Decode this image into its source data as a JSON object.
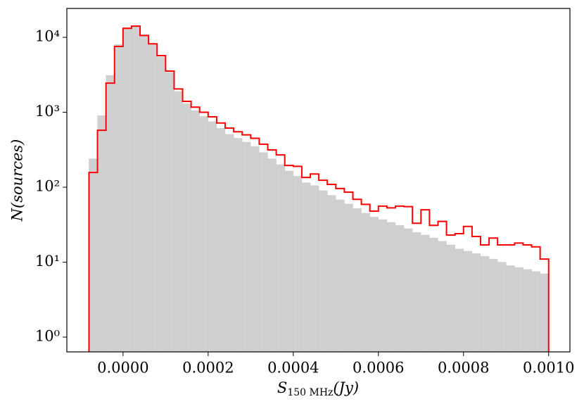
{
  "chart_data": {
    "type": "histogram",
    "xlabel": {
      "symbol": "S",
      "subscript": "150 MHz",
      "unit": "(Jy)"
    },
    "ylabel": "N(sources)",
    "bins": [
      -8e-05,
      -6e-05,
      -4e-05,
      -2e-05,
      0,
      2e-05,
      4e-05,
      6e-05,
      8e-05,
      0.0001,
      0.00012,
      0.00014,
      0.00016,
      0.00018,
      0.0002,
      0.00022,
      0.00024,
      0.00026,
      0.00028,
      0.0003,
      0.00032,
      0.00034,
      0.00036,
      0.00038,
      0.0004,
      0.00042,
      0.00044,
      0.00046,
      0.00048,
      0.0005,
      0.00052,
      0.00054,
      0.00056,
      0.00058,
      0.0006,
      0.00062,
      0.00064,
      0.00066,
      0.00068,
      0.0007,
      0.00072,
      0.00074,
      0.00076,
      0.00078,
      0.0008,
      0.00082,
      0.00084,
      0.00086,
      0.00088,
      0.0009,
      0.00092,
      0.00094,
      0.00096,
      0.00098,
      0.001
    ],
    "series": [
      {
        "color": "#d0d0d0",
        "style": "bars",
        "values": [
          240,
          900,
          3100,
          8000,
          13500,
          14000,
          10500,
          8000,
          5500,
          3400,
          1900,
          1300,
          1050,
          880,
          750,
          610,
          510,
          450,
          400,
          350,
          290,
          240,
          200,
          165,
          140,
          115,
          105,
          90,
          78,
          68,
          60,
          52,
          45,
          40,
          37,
          34,
          31,
          28,
          25,
          23,
          21,
          19,
          17,
          15,
          14,
          13,
          12,
          11,
          10,
          9,
          8.5,
          8,
          7.5,
          7
        ]
      },
      {
        "color": "#ff0000",
        "style": "step",
        "values": [
          157,
          575,
          2450,
          7550,
          13200,
          14100,
          10600,
          8200,
          5700,
          3550,
          2050,
          1400,
          1170,
          1000,
          870,
          720,
          615,
          550,
          500,
          450,
          375,
          315,
          270,
          195,
          190,
          135,
          150,
          124,
          109,
          96,
          86,
          69,
          59,
          48,
          56,
          53,
          56,
          55,
          33,
          50,
          31,
          35,
          23,
          24,
          30,
          22,
          17,
          21,
          17,
          17,
          18,
          17,
          16,
          11
        ]
      }
    ],
    "xlim": [
      -0.000132,
      0.00105
    ],
    "ylim": [
      0.635,
      24300
    ],
    "log_y": true,
    "xticks": [
      {
        "value": 0,
        "label": "0.0000"
      },
      {
        "value": 0.0002,
        "label": "0.0002"
      },
      {
        "value": 0.0004,
        "label": "0.0004"
      },
      {
        "value": 0.0006,
        "label": "0.0006"
      },
      {
        "value": 0.0008,
        "label": "0.0008"
      },
      {
        "value": 0.001,
        "label": "0.0010"
      }
    ],
    "yticks": [
      {
        "value": 1,
        "label": "10⁰"
      },
      {
        "value": 10,
        "label": "10¹"
      },
      {
        "value": 100,
        "label": "10²"
      },
      {
        "value": 1000,
        "label": "10³"
      },
      {
        "value": 10000,
        "label": "10⁴"
      }
    ]
  }
}
